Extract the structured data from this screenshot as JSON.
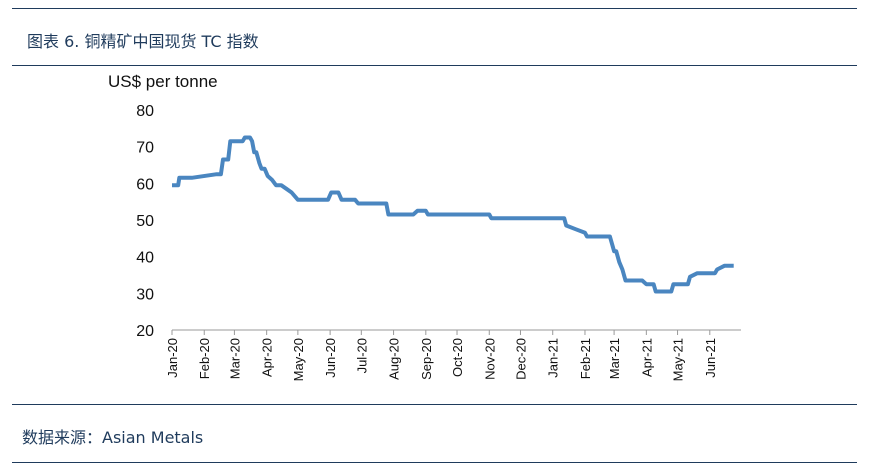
{
  "header": {
    "title": "图表 6. 铜精矿中国现货 TC 指数"
  },
  "footer": {
    "source": "数据来源：Asian Metals"
  },
  "colors": {
    "line": "#4a86c0",
    "rule": "#1f3b5c",
    "text": "#111111"
  },
  "chart_data": {
    "type": "line",
    "title": "图表 6. 铜精矿中国现货 TC 指数",
    "ylabel": "US$ per tonne",
    "xlabel": "",
    "ylim": [
      20,
      80
    ],
    "yticks": [
      20,
      30,
      40,
      50,
      60,
      70,
      80
    ],
    "xticks": [
      "Jan-20",
      "Feb-20",
      "Mar-20",
      "Apr-20",
      "May-20",
      "Jun-20",
      "Jul-20",
      "Aug-20",
      "Sep-20",
      "Oct-20",
      "Nov-20",
      "Dec-20",
      "Jan-21",
      "Feb-21",
      "Mar-21",
      "Apr-21",
      "May-21",
      "Jun-21"
    ],
    "grid": false,
    "legend": "none",
    "series": [
      {
        "x": [
          "2020-01-01",
          "2020-01-07",
          "2020-01-08",
          "2020-01-20",
          "2020-02-13",
          "2020-02-17",
          "2020-02-19",
          "2020-02-24",
          "2020-02-26",
          "2020-03-09",
          "2020-03-11",
          "2020-03-16",
          "2020-03-18",
          "2020-03-20",
          "2020-03-22",
          "2020-03-25",
          "2020-03-27",
          "2020-03-30",
          "2020-04-02",
          "2020-04-06",
          "2020-04-10",
          "2020-04-15",
          "2020-04-20",
          "2020-04-25",
          "2020-05-01",
          "2020-05-08",
          "2020-05-14",
          "2020-05-30",
          "2020-06-02",
          "2020-06-09",
          "2020-06-12",
          "2020-06-25",
          "2020-06-28",
          "2020-07-08",
          "2020-07-11",
          "2020-07-25",
          "2020-07-27",
          "2020-08-20",
          "2020-08-24",
          "2020-09-01",
          "2020-09-03",
          "2020-11-01",
          "2020-11-03",
          "2021-01-01",
          "2021-01-03",
          "2021-01-12",
          "2021-01-14",
          "2021-01-23",
          "2021-02-01",
          "2021-02-03",
          "2021-02-23",
          "2021-02-25",
          "2021-03-01",
          "2021-03-03",
          "2021-03-06",
          "2021-03-09",
          "2021-03-12",
          "2021-03-16",
          "2021-03-28",
          "2021-04-01",
          "2021-04-08",
          "2021-04-10",
          "2021-04-25",
          "2021-04-27",
          "2021-05-11",
          "2021-05-13",
          "2021-05-20",
          "2021-06-06",
          "2021-06-08",
          "2021-06-15",
          "2021-06-24"
        ],
        "y": [
          59.5,
          59.5,
          61.5,
          61.5,
          62.5,
          62.5,
          66.5,
          66.5,
          71.5,
          71.5,
          72.5,
          72.5,
          71.5,
          68.5,
          68.5,
          65.5,
          64,
          64,
          62,
          61,
          59.5,
          59.5,
          58.5,
          57.5,
          55.5,
          55.5,
          55.5,
          55.5,
          57.5,
          57.5,
          55.5,
          55.5,
          54.5,
          54.5,
          54.5,
          54.5,
          51.5,
          51.5,
          52.5,
          52.5,
          51.5,
          51.5,
          50.5,
          50.5,
          50.5,
          50.5,
          48.5,
          47.5,
          46.5,
          45.5,
          45.5,
          45.5,
          41.5,
          41.5,
          38.5,
          36.5,
          33.5,
          33.5,
          33.5,
          32.5,
          32.5,
          30.5,
          30.5,
          32.5,
          32.5,
          34.5,
          35.5,
          35.5,
          36.5,
          37.5,
          37.5
        ]
      }
    ]
  }
}
